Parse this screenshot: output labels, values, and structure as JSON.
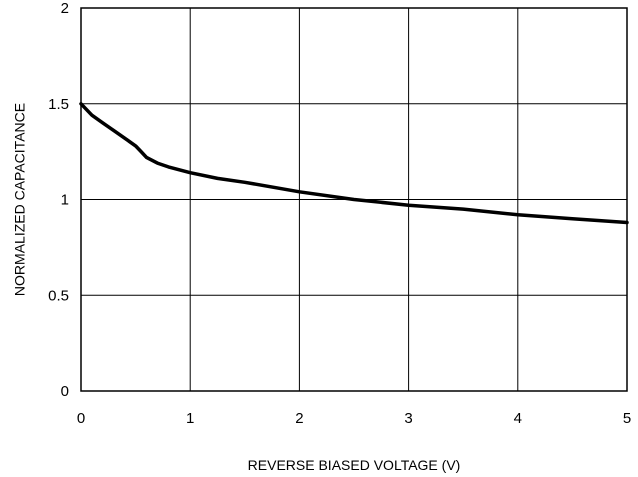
{
  "chart_data": {
    "type": "line",
    "xlabel": "REVERSE BIASED VOLTAGE (V)",
    "ylabel": "NORMALIZED CAPACITANCE",
    "xlim": [
      0,
      5
    ],
    "ylim": [
      0,
      2
    ],
    "x_ticks": [
      0,
      1,
      2,
      3,
      4,
      5
    ],
    "y_ticks": [
      0,
      0.5,
      1,
      1.5,
      2
    ],
    "x_tick_labels": [
      "0",
      "1",
      "2",
      "3",
      "4",
      "5"
    ],
    "y_tick_labels": [
      "0",
      "0.5",
      "1",
      "1.5",
      "2"
    ],
    "grid": true,
    "line_color": "#000000",
    "series": [
      {
        "x": [
          0,
          0.1,
          0.2,
          0.3,
          0.4,
          0.5,
          0.55,
          0.6,
          0.7,
          0.8,
          1.0,
          1.25,
          1.5,
          2.0,
          2.5,
          3.0,
          3.5,
          4.0,
          4.5,
          5.0
        ],
        "y": [
          1.5,
          1.44,
          1.4,
          1.36,
          1.32,
          1.28,
          1.25,
          1.22,
          1.19,
          1.17,
          1.14,
          1.11,
          1.09,
          1.04,
          1.0,
          0.97,
          0.95,
          0.92,
          0.9,
          0.88
        ]
      }
    ]
  }
}
